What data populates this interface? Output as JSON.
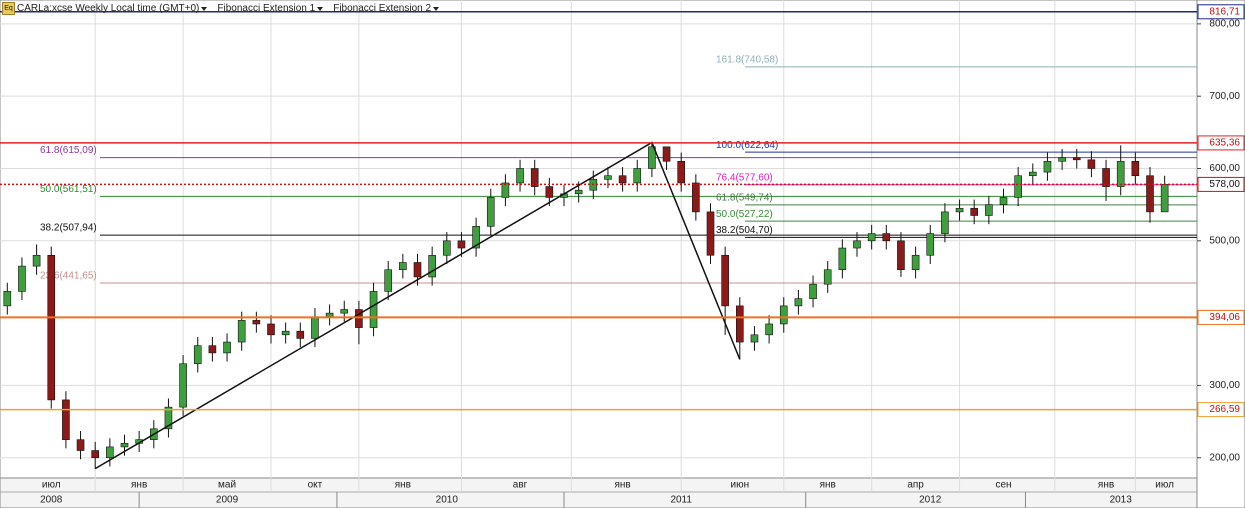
{
  "chart_data": {
    "type": "candlestick",
    "title": "CARLa:xcse Weekly Local time (GMT+0)",
    "up_color": "#3f9f3f",
    "down_color": "#8b1a1a",
    "ylim": [
      172,
      833
    ],
    "yticks": [
      {
        "value": 200,
        "label": "200,00"
      },
      {
        "value": 300,
        "label": "300,00"
      },
      {
        "value": 500,
        "label": "500,00"
      },
      {
        "value": 600,
        "label": "600,00"
      },
      {
        "value": 700,
        "label": "700,00"
      },
      {
        "value": 800,
        "label": "800,00"
      }
    ],
    "categories": [
      null,
      null,
      null,
      "июл",
      null,
      null,
      null,
      null,
      null,
      "янв",
      null,
      null,
      null,
      null,
      null,
      "май",
      null,
      null,
      null,
      null,
      null,
      "окт",
      null,
      null,
      null,
      null,
      null,
      "янв",
      null,
      null,
      null,
      null,
      null,
      null,
      null,
      "авг",
      null,
      null,
      null,
      null,
      null,
      null,
      "янв",
      null,
      null,
      null,
      null,
      null,
      null,
      null,
      "июн",
      null,
      null,
      null,
      null,
      null,
      "янв",
      null,
      null,
      null,
      null,
      null,
      "апр",
      null,
      null,
      null,
      null,
      null,
      "сен",
      null,
      null,
      null,
      null,
      null,
      null,
      "янв",
      null,
      null,
      null,
      "июл"
    ],
    "years": [
      null,
      null,
      null,
      "2008",
      null,
      null,
      null,
      null,
      null,
      null,
      null,
      null,
      null,
      null,
      null,
      "2009",
      null,
      null,
      null,
      null,
      null,
      null,
      null,
      null,
      null,
      null,
      null,
      null,
      null,
      null,
      "2010",
      null,
      null,
      null,
      null,
      null,
      null,
      null,
      null,
      null,
      null,
      null,
      null,
      null,
      null,
      null,
      "2011",
      null,
      null,
      null,
      null,
      null,
      null,
      null,
      null,
      null,
      null,
      null,
      null,
      null,
      null,
      null,
      null,
      "2012",
      null,
      null,
      null,
      null,
      null,
      null,
      null,
      null,
      null,
      null,
      null,
      null,
      "2013",
      null,
      null,
      null
    ],
    "open": [
      410,
      430,
      465,
      480,
      280,
      225,
      210,
      200,
      215,
      220,
      225,
      240,
      270,
      330,
      355,
      345,
      360,
      390,
      385,
      370,
      375,
      365,
      395,
      400,
      405,
      380,
      430,
      460,
      470,
      450,
      480,
      500,
      490,
      520,
      560,
      580,
      600,
      575,
      560,
      565,
      570,
      585,
      590,
      580,
      600,
      630,
      610,
      580,
      540,
      480,
      410,
      360,
      370,
      385,
      410,
      420,
      440,
      460,
      490,
      500,
      510,
      500,
      460,
      480,
      510,
      540,
      545,
      535,
      550,
      560,
      590,
      595,
      610,
      615,
      612,
      600,
      575,
      610,
      590,
      540
    ],
    "high": [
      442,
      477,
      495,
      492,
      292,
      237,
      222,
      227,
      232,
      237,
      252,
      282,
      342,
      367,
      367,
      372,
      402,
      402,
      397,
      387,
      387,
      407,
      412,
      417,
      417,
      442,
      472,
      482,
      482,
      492,
      512,
      512,
      532,
      572,
      592,
      612,
      612,
      587,
      577,
      582,
      597,
      602,
      602,
      612,
      636,
      630,
      622,
      592,
      552,
      492,
      422,
      382,
      397,
      422,
      432,
      452,
      472,
      502,
      512,
      522,
      522,
      512,
      492,
      522,
      552,
      557,
      557,
      562,
      572,
      602,
      607,
      622,
      627,
      627,
      624,
      612,
      632,
      622,
      602,
      590
    ],
    "low": [
      398,
      418,
      453,
      268,
      213,
      198,
      185,
      188,
      203,
      208,
      213,
      228,
      258,
      318,
      333,
      333,
      348,
      373,
      358,
      358,
      353,
      353,
      383,
      388,
      357,
      368,
      418,
      448,
      438,
      438,
      468,
      478,
      478,
      508,
      548,
      568,
      563,
      548,
      548,
      553,
      558,
      573,
      568,
      568,
      588,
      598,
      568,
      528,
      468,
      370,
      336,
      348,
      358,
      373,
      398,
      408,
      428,
      448,
      478,
      488,
      488,
      450,
      448,
      468,
      498,
      528,
      523,
      523,
      538,
      548,
      578,
      583,
      598,
      600,
      588,
      555,
      563,
      578,
      525,
      540
    ],
    "close": [
      430,
      465,
      480,
      280,
      225,
      210,
      200,
      215,
      220,
      225,
      240,
      270,
      330,
      355,
      345,
      360,
      390,
      385,
      370,
      375,
      365,
      395,
      400,
      405,
      380,
      430,
      460,
      470,
      450,
      480,
      500,
      490,
      520,
      560,
      580,
      600,
      575,
      560,
      565,
      570,
      585,
      590,
      580,
      600,
      630,
      610,
      580,
      540,
      480,
      410,
      360,
      370,
      385,
      410,
      420,
      440,
      460,
      490,
      500,
      510,
      500,
      460,
      480,
      510,
      540,
      545,
      535,
      550,
      560,
      590,
      595,
      610,
      615,
      612,
      600,
      575,
      610,
      590,
      540,
      578
    ],
    "levels": [
      {
        "value": 816.71,
        "label": "816,71",
        "color": "#1c2a80"
      },
      {
        "value": 635.36,
        "label": "635,36",
        "color": "#e02020"
      },
      {
        "value": 578.0,
        "label": "578,00",
        "color": "#d01010",
        "style": "dotted"
      },
      {
        "value": 394.06,
        "label": "394,06",
        "color": "#f07020",
        "width": 2
      },
      {
        "value": 266.59,
        "label": "266,59",
        "color": "#f0a030"
      }
    ],
    "fibonacci": [
      {
        "name": "Fibonacci Extension 1",
        "lines": [
          {
            "value": 615.09,
            "label": "61.8(615,09)",
            "color": "#8a3a9a"
          },
          {
            "value": 561.51,
            "label": "50.0(561,51)",
            "color": "#2e8b2e"
          },
          {
            "value": 507.94,
            "label": "38.2(507,94)",
            "color": "#111111"
          },
          {
            "value": 441.65,
            "label": "23.6(441,65)",
            "color": "#c89090"
          }
        ]
      },
      {
        "name": "Fibonacci Extension 2",
        "lines": [
          {
            "value": 740.58,
            "label": "161.8(740,58)",
            "color": "#8fb0b8"
          },
          {
            "value": 622.64,
            "label": "100.0(622,64)",
            "color": "#2233aa"
          },
          {
            "value": 577.6,
            "label": "76.4(577,60)",
            "color": "#e020c0"
          },
          {
            "value": 549.74,
            "label": "61.8(549,74)",
            "color": "#4a7a4a"
          },
          {
            "value": 527.22,
            "label": "50.0(527,22)",
            "color": "#3a8a3a"
          },
          {
            "value": 504.7,
            "label": "38.2(504,70)",
            "color": "#111111"
          }
        ]
      }
    ]
  }
}
